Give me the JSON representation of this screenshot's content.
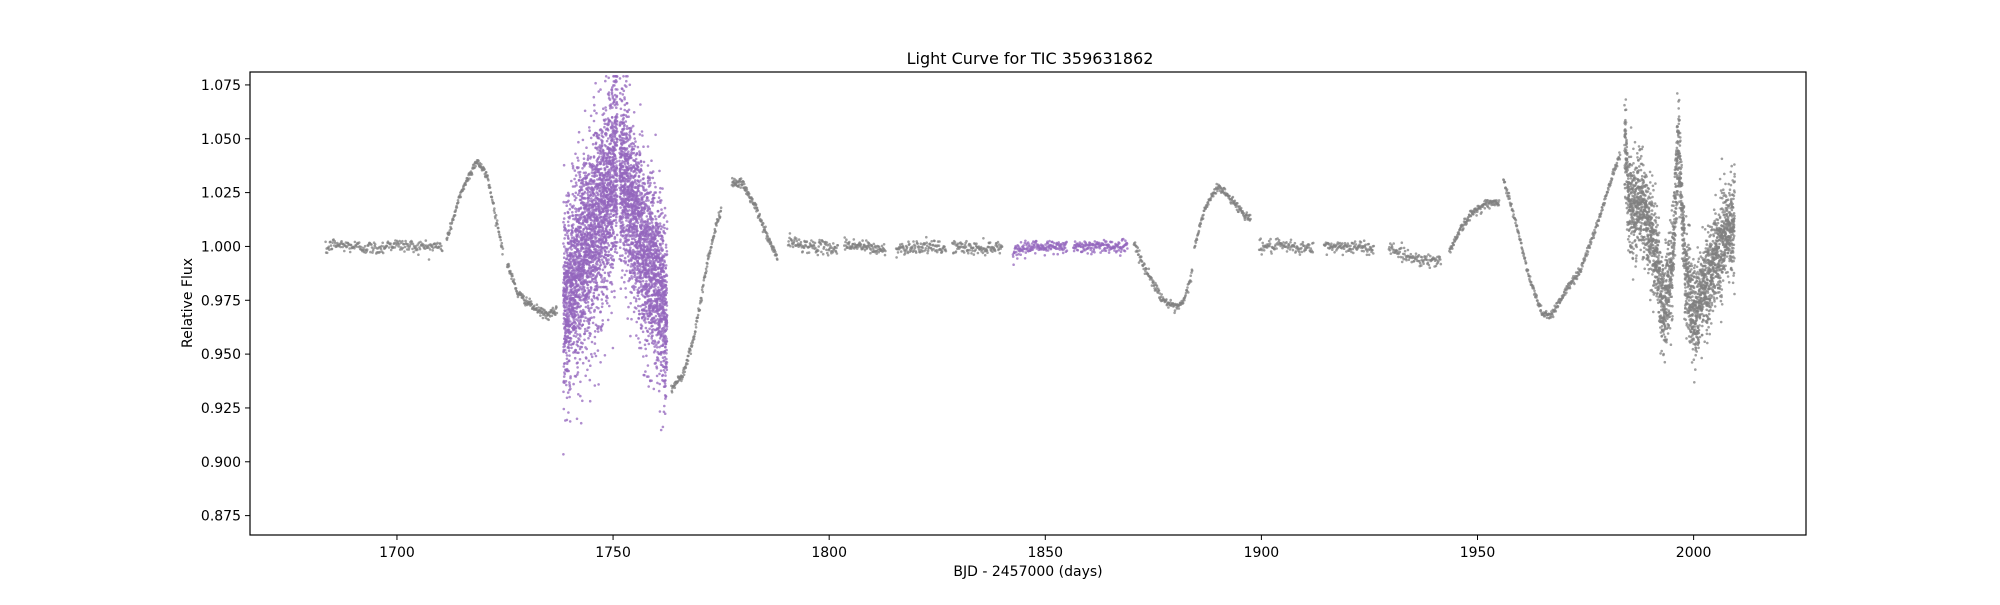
{
  "chart_data": {
    "type": "scatter",
    "title": "Light Curve for TIC 359631862",
    "xlabel": "BJD - 2457000 (days)",
    "ylabel": "Relative Flux",
    "xlim": [
      1666,
      2026
    ],
    "ylim": [
      0.866,
      1.081
    ],
    "x_ticks": [
      1700,
      1750,
      1800,
      1850,
      1900,
      1950,
      2000
    ],
    "x_tick_labels": [
      "1700",
      "1750",
      "1800",
      "1850",
      "1900",
      "1950",
      "2000"
    ],
    "y_ticks": [
      0.875,
      0.9,
      0.925,
      0.95,
      0.975,
      1.0,
      1.025,
      1.05,
      1.075
    ],
    "y_tick_labels": [
      "0.875",
      "0.900",
      "0.925",
      "0.950",
      "0.975",
      "1.000",
      "1.025",
      "1.050",
      "1.075"
    ],
    "grid": false,
    "legend": "none",
    "series": [
      {
        "color": "#808080",
        "marker_size": 1.3,
        "segments": [
          {
            "x0": 1683.5,
            "x1": 1710.5,
            "shape": [
              [
                1683.5,
                0.998
              ],
              [
                1685,
                1.001
              ],
              [
                1690,
                1.0
              ],
              [
                1696,
                0.999
              ],
              [
                1698,
                1.001
              ],
              [
                1704,
                1.0
              ],
              [
                1710.5,
                1.0
              ]
            ],
            "scatter": 0.0015,
            "n": 220
          },
          {
            "x0": 1711.5,
            "x1": 1724.5,
            "shape": [
              [
                1711.5,
                1.003
              ],
              [
                1715,
                1.026
              ],
              [
                1718.5,
                1.04
              ],
              [
                1721,
                1.032
              ],
              [
                1724.5,
                0.998
              ]
            ],
            "scatter": 0.001,
            "n": 160
          },
          {
            "x0": 1725.5,
            "x1": 1737,
            "shape": [
              [
                1725.5,
                0.992
              ],
              [
                1728,
                0.978
              ],
              [
                1732,
                0.971
              ],
              [
                1735,
                0.968
              ],
              [
                1737,
                0.97
              ]
            ],
            "scatter": 0.001,
            "n": 140
          },
          {
            "x0": 1763.5,
            "x1": 1775,
            "shape": [
              [
                1763.5,
                0.934
              ],
              [
                1766,
                0.94
              ],
              [
                1769,
                0.96
              ],
              [
                1772,
                0.995
              ],
              [
                1775,
                1.018
              ]
            ],
            "scatter": 0.0012,
            "n": 150
          },
          {
            "x0": 1777.5,
            "x1": 1788,
            "shape": [
              [
                1777.5,
                1.03
              ],
              [
                1780,
                1.029
              ],
              [
                1783,
                1.018
              ],
              [
                1786,
                1.003
              ],
              [
                1788,
                0.995
              ]
            ],
            "scatter": 0.001,
            "n": 140
          },
          {
            "x0": 1790.5,
            "x1": 1802,
            "shape": [
              [
                1790.5,
                1.002
              ],
              [
                1796,
                1.0
              ],
              [
                1802,
                0.999
              ]
            ],
            "scatter": 0.0015,
            "n": 110
          },
          {
            "x0": 1803.5,
            "x1": 1813,
            "shape": [
              [
                1803.5,
                1.001
              ],
              [
                1808,
                1.0
              ],
              [
                1813,
                0.998
              ]
            ],
            "scatter": 0.0015,
            "n": 100
          },
          {
            "x0": 1815.5,
            "x1": 1827,
            "shape": [
              [
                1815.5,
                0.999
              ],
              [
                1821,
                1.0
              ],
              [
                1827,
                0.999
              ]
            ],
            "scatter": 0.0015,
            "n": 110
          },
          {
            "x0": 1828.5,
            "x1": 1840,
            "shape": [
              [
                1828.5,
                1.0
              ],
              [
                1834,
                0.999
              ],
              [
                1840,
                1.0
              ]
            ],
            "scatter": 0.0015,
            "n": 110
          },
          {
            "x0": 1870.5,
            "x1": 1884,
            "shape": [
              [
                1870.5,
                1.002
              ],
              [
                1873,
                0.99
              ],
              [
                1877,
                0.976
              ],
              [
                1880,
                0.971
              ],
              [
                1882,
                0.974
              ],
              [
                1884,
                0.988
              ]
            ],
            "scatter": 0.001,
            "n": 150
          },
          {
            "x0": 1884.5,
            "x1": 1897.5,
            "shape": [
              [
                1884.5,
                1.0
              ],
              [
                1887,
                1.018
              ],
              [
                1890,
                1.028
              ],
              [
                1893,
                1.022
              ],
              [
                1896,
                1.015
              ],
              [
                1897.5,
                1.013
              ]
            ],
            "scatter": 0.001,
            "n": 150
          },
          {
            "x0": 1899.5,
            "x1": 1912,
            "shape": [
              [
                1899.5,
                1.0
              ],
              [
                1905,
                1.0
              ],
              [
                1912,
                0.999
              ]
            ],
            "scatter": 0.0015,
            "n": 110
          },
          {
            "x0": 1914.5,
            "x1": 1926,
            "shape": [
              [
                1914.5,
                1.0
              ],
              [
                1920,
                1.0
              ],
              [
                1926,
                0.999
              ]
            ],
            "scatter": 0.0015,
            "n": 110
          },
          {
            "x0": 1929.5,
            "x1": 1941.5,
            "shape": [
              [
                1929.5,
                1.0
              ],
              [
                1933,
                0.996
              ],
              [
                1937,
                0.994
              ],
              [
                1941.5,
                0.993
              ]
            ],
            "scatter": 0.0015,
            "n": 110
          },
          {
            "x0": 1943.5,
            "x1": 1955,
            "shape": [
              [
                1943.5,
                0.998
              ],
              [
                1946,
                1.008
              ],
              [
                1949,
                1.016
              ],
              [
                1952,
                1.02
              ],
              [
                1955,
                1.02
              ]
            ],
            "scatter": 0.001,
            "n": 140
          },
          {
            "x0": 1956,
            "x1": 1983,
            "shape": [
              [
                1956,
                1.032
              ],
              [
                1959,
                1.01
              ],
              [
                1962,
                0.985
              ],
              [
                1965,
                0.969
              ],
              [
                1967,
                0.968
              ],
              [
                1970,
                0.978
              ],
              [
                1974,
                0.99
              ],
              [
                1978,
                1.012
              ],
              [
                1981,
                1.032
              ],
              [
                1983,
                1.043
              ]
            ],
            "scatter": 0.001,
            "n": 320
          },
          {
            "x0": 1984,
            "x1": 2009.5,
            "shape": [
              [
                1984,
                1.055
              ],
              [
                1985,
                1.02
              ],
              [
                1988,
                1.02
              ],
              [
                1991,
                1.0
              ],
              [
                1993,
                0.97
              ],
              [
                1995,
                0.99
              ],
              [
                1996.5,
                1.05
              ],
              [
                1998,
                0.99
              ],
              [
                2000,
                0.968
              ],
              [
                2002,
                0.978
              ],
              [
                2005,
                0.995
              ],
              [
                2009.5,
                1.012
              ]
            ],
            "scatter": 0.011,
            "n": 2600
          }
        ]
      },
      {
        "color": "#9467bd",
        "marker_size": 1.3,
        "segments": [
          {
            "x0": 1738.5,
            "x1": 1751,
            "shape": [
              [
                1738.5,
                0.97
              ],
              [
                1741,
                0.985
              ],
              [
                1744,
                1.0
              ],
              [
                1747,
                1.015
              ],
              [
                1749,
                1.025
              ],
              [
                1751,
                1.04
              ]
            ],
            "scatter": 0.022,
            "n": 2600
          },
          {
            "x0": 1751.5,
            "x1": 1762.5,
            "shape": [
              [
                1751.5,
                1.035
              ],
              [
                1754,
                1.02
              ],
              [
                1757,
                1.0
              ],
              [
                1760,
                0.985
              ],
              [
                1762.5,
                0.968
              ]
            ],
            "scatter": 0.02,
            "n": 2200
          },
          {
            "x0": 1842.5,
            "x1": 1855,
            "shape": [
              [
                1842.5,
                0.996
              ],
              [
                1844,
                0.999
              ],
              [
                1848,
                1.0
              ],
              [
                1855,
                1.0
              ]
            ],
            "scatter": 0.0015,
            "n": 160
          },
          {
            "x0": 1856.5,
            "x1": 1869,
            "shape": [
              [
                1856.5,
                1.0
              ],
              [
                1862,
                1.0
              ],
              [
                1869,
                1.0
              ]
            ],
            "scatter": 0.0015,
            "n": 160
          }
        ]
      }
    ]
  }
}
